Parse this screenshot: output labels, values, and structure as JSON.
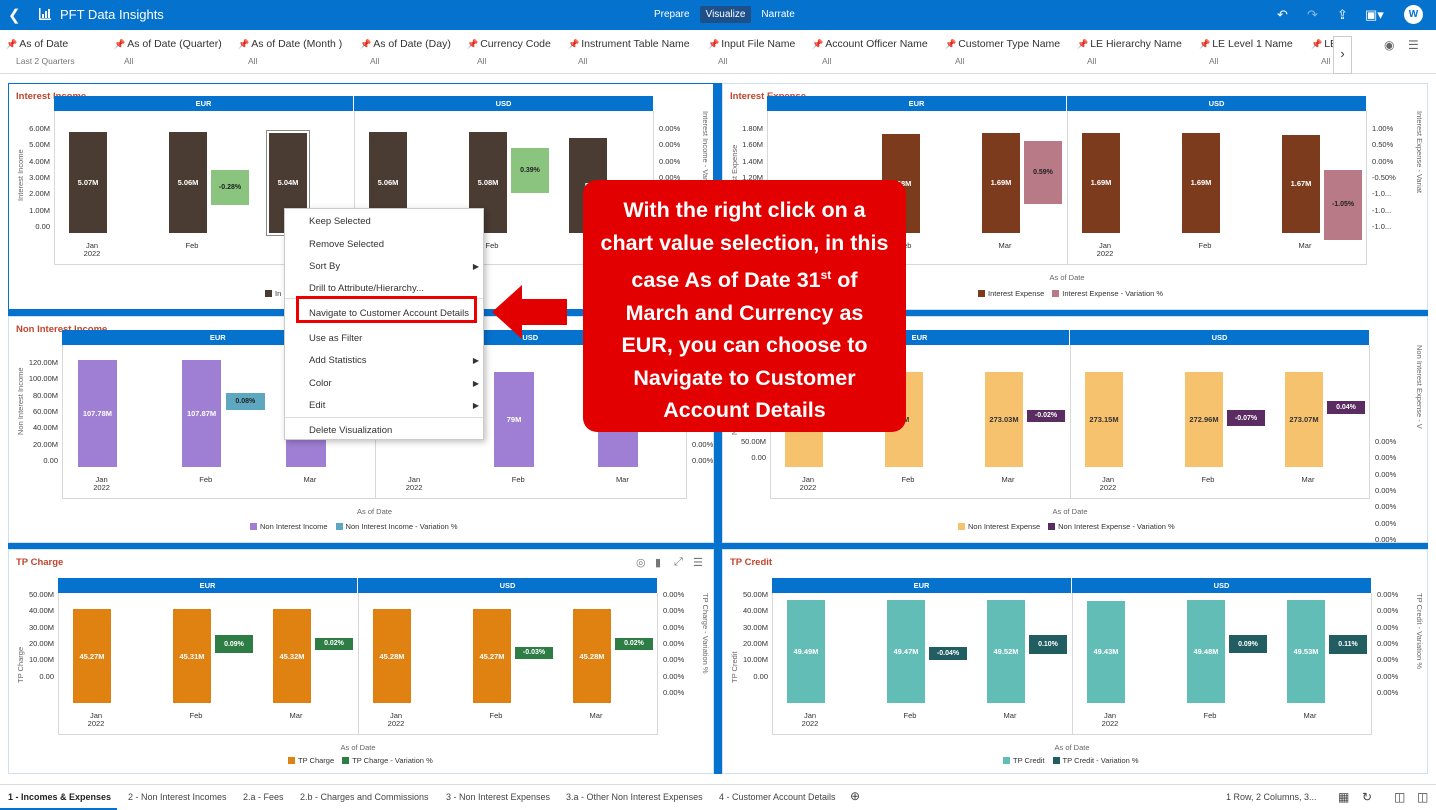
{
  "app": {
    "title": "PFT Data Insights",
    "modes": [
      "Prepare",
      "Visualize",
      "Narrate"
    ],
    "active_mode": "Visualize",
    "user_initial": "W"
  },
  "filters": [
    {
      "label": "As of Date",
      "value": "Last 2 Quarters"
    },
    {
      "label": "As of Date (Quarter)",
      "value": "All"
    },
    {
      "label": "As of Date (Month )",
      "value": "All"
    },
    {
      "label": "As of Date (Day)",
      "value": "All"
    },
    {
      "label": "Currency Code",
      "value": "All"
    },
    {
      "label": "Instrument Table Name",
      "value": "All"
    },
    {
      "label": "Input File Name",
      "value": "All"
    },
    {
      "label": "Account Officer Name",
      "value": "All"
    },
    {
      "label": "Customer Type Name",
      "value": "All"
    },
    {
      "label": "LE Hierarchy Name",
      "value": "All"
    },
    {
      "label": "LE Level 1 Name",
      "value": "All"
    },
    {
      "label": "LE",
      "value": "All"
    }
  ],
  "colors": {
    "brand": "#0572ce",
    "title_red": "#c2452d",
    "callout": "#e30000"
  },
  "common": {
    "x_title": "As of Date",
    "currencies": [
      "EUR",
      "USD"
    ],
    "months": [
      "Jan",
      "Feb",
      "Mar"
    ],
    "year": "2022"
  },
  "panels": {
    "income": {
      "title": "Interest Income",
      "yticks": [
        "6.00M",
        "5.00M",
        "4.00M",
        "3.00M",
        "2.00M",
        "1.00M",
        "0.00"
      ],
      "rticks": [
        "0.00%",
        "0.00%",
        "0.00%",
        "0.00%",
        "0.00%",
        "0.00%",
        "0.00%"
      ],
      "ylabel": "Interest Income",
      "rlabel": "Interest Income - Variatio",
      "legend_prefix": "In"
    },
    "expense": {
      "title": "Interest Expense",
      "yticks": [
        "1.80M",
        "1.60M",
        "1.40M",
        "1.20M",
        "1.00M",
        "0.80M",
        "0.60M"
      ],
      "rticks": [
        "1.00%",
        "0.50%",
        "0.00%",
        "-0.50%",
        "-1.0...",
        "-1.0...",
        "-1.0..."
      ],
      "ylabel": "Interest Expense",
      "rlabel": "Interest Expense - Variat",
      "legend": [
        "Interest Expense",
        "Interest Expense - Variation %"
      ],
      "x_title": "As of Date"
    },
    "nonincome": {
      "title": "Non Interest Income",
      "yticks": [
        "120.00M",
        "100.00M",
        "80.00M",
        "60.00M",
        "40.00M",
        "20.00M",
        "0.00"
      ],
      "rticks": [
        "0.00%",
        "0.00%",
        "0.00%",
        "0.00%",
        "0.00%",
        "0.00%",
        "0.00%"
      ],
      "ylabel": "Non Interest Income",
      "legend": [
        "Non Interest Income",
        "Non Interest Income - Variation %"
      ],
      "x_title": "As of Date"
    },
    "nonexpense": {
      "yticks": [
        "50.00M",
        "0.00"
      ],
      "rticks": [
        "0.00%",
        "0.00%",
        "0.00%",
        "0.00%",
        "0.00%",
        "0.00%",
        "0.00%"
      ],
      "ylabel": "Non Interest Expense",
      "rlabel": "Non Interest Expense - V",
      "legend": [
        "Non Interest Expense",
        "Non Interest Expense - Variation %"
      ],
      "x_title": "As of Date"
    },
    "tpcharge": {
      "title": "TP Charge",
      "yticks": [
        "50.00M",
        "40.00M",
        "30.00M",
        "20.00M",
        "10.00M",
        "0.00"
      ],
      "rticks": [
        "0.00%",
        "0.00%",
        "0.00%",
        "0.00%",
        "0.00%",
        "0.00%",
        "0.00%"
      ],
      "ylabel": "TP Charge",
      "rlabel": "TP Charge - Variation %",
      "legend": [
        "TP Charge",
        "TP Charge - Variation %"
      ],
      "x_title": "As of Date"
    },
    "tpcredit": {
      "title": "TP Credit",
      "yticks": [
        "50.00M",
        "40.00M",
        "30.00M",
        "20.00M",
        "10.00M",
        "0.00"
      ],
      "rticks": [
        "0.00%",
        "0.00%",
        "0.00%",
        "0.00%",
        "0.00%",
        "0.00%",
        "0.00%"
      ],
      "ylabel": "TP Credit",
      "rlabel": "TP Credit - Variation %",
      "legend": [
        "TP Credit",
        "TP Credit - Variation %"
      ],
      "x_title": "As of Date"
    }
  },
  "chart_data": [
    {
      "type": "bar",
      "title": "Interest Income",
      "categories": [
        "EUR Jan 2022",
        "EUR Feb",
        "EUR Mar",
        "USD Jan 2022",
        "USD Feb",
        "USD Mar"
      ],
      "series": [
        {
          "name": "Interest Income",
          "values": [
            5.07,
            5.06,
            5.04,
            5.06,
            5.08,
            null
          ],
          "labels": [
            "5.07M",
            "5.06M",
            "5.04M",
            "5.06M",
            "5.08M",
            "5."
          ]
        },
        {
          "values": [
            null,
            -0.28,
            null,
            null,
            0.39,
            null
          ],
          "labels": [
            "",
            "-0.28%",
            "",
            "",
            "0.39%",
            ""
          ]
        }
      ],
      "ylim": [
        0,
        6
      ]
    },
    {
      "type": "bar",
      "title": "Interest Expense",
      "categories": [
        "EUR Jan 2022",
        "EUR Feb",
        "EUR Mar",
        "USD Jan 2022",
        "USD Feb",
        "USD Mar"
      ],
      "series": [
        {
          "name": "Interest Expense",
          "values": [
            null,
            1.68,
            1.69,
            1.69,
            1.69,
            1.67
          ],
          "labels": [
            "",
            "1.68M",
            "1.69M",
            "1.69M",
            "1.69M",
            "1.67M"
          ]
        },
        {
          "name": "Interest Expense - Variation %",
          "values": [
            null,
            null,
            0.59,
            null,
            null,
            -1.05
          ],
          "labels": [
            "",
            "",
            "0.59%",
            "",
            "",
            "-1.05%"
          ]
        }
      ]
    },
    {
      "type": "bar",
      "title": "Non Interest Income",
      "categories": [
        "EUR Jan 2022",
        "EUR Feb",
        "EUR Mar",
        "USD Jan 2022",
        "USD Feb",
        "USD Mar"
      ],
      "series": [
        {
          "name": "Non Interest Income",
          "values": [
            107.78,
            107.87,
            null,
            null,
            null,
            null
          ],
          "labels": [
            "107.78M",
            "107.87M",
            "10",
            "",
            "79M",
            "107"
          ]
        },
        {
          "name": "Non Interest Income - Variation %",
          "values": [
            null,
            0.08,
            null,
            null,
            null,
            null
          ],
          "labels": [
            "",
            "0.08%",
            "",
            "",
            "",
            ""
          ]
        }
      ],
      "ylim": [
        0,
        120
      ]
    },
    {
      "type": "bar",
      "title": "Non Interest Expense",
      "categories": [
        "EUR Jan 2022",
        "EUR Feb",
        "EUR Mar",
        "USD Jan 2022",
        "USD Feb",
        "USD Mar"
      ],
      "series": [
        {
          "name": "Non Interest Expense",
          "values": [
            null,
            null,
            273.03,
            273.15,
            272.96,
            273.07
          ],
          "labels": [
            "",
            "7M",
            "273.03M",
            "273.15M",
            "272.96M",
            "273.07M"
          ]
        },
        {
          "name": "Non Interest Expense - Variation %",
          "values": [
            null,
            null,
            -0.02,
            null,
            -0.07,
            0.04
          ],
          "labels": [
            "",
            "",
            "-0.02%",
            "",
            "-0.07%",
            "0.04%"
          ]
        }
      ]
    },
    {
      "type": "bar",
      "title": "TP Charge",
      "categories": [
        "EUR Jan 2022",
        "EUR Feb",
        "EUR Mar",
        "USD Jan 2022",
        "USD Feb",
        "USD Mar"
      ],
      "series": [
        {
          "name": "TP Charge",
          "values": [
            45.27,
            45.31,
            45.32,
            45.28,
            45.27,
            45.28
          ],
          "labels": [
            "45.27M",
            "45.31M",
            "45.32M",
            "45.28M",
            "45.27M",
            "45.28M"
          ]
        },
        {
          "name": "TP Charge - Variation %",
          "values": [
            null,
            0.09,
            0.02,
            null,
            -0.03,
            0.02
          ],
          "labels": [
            "",
            "0.09%",
            "0.02%",
            "",
            "-0.03%",
            "0.02%"
          ]
        }
      ],
      "ylim": [
        0,
        50
      ]
    },
    {
      "type": "bar",
      "title": "TP Credit",
      "categories": [
        "EUR Jan 2022",
        "EUR Feb",
        "EUR Mar",
        "USD Jan 2022",
        "USD Feb",
        "USD Mar"
      ],
      "series": [
        {
          "name": "TP Credit",
          "values": [
            49.49,
            49.47,
            49.52,
            49.43,
            49.48,
            49.53
          ],
          "labels": [
            "49.49M",
            "49.47M",
            "49.52M",
            "49.43M",
            "49.48M",
            "49.53M"
          ]
        },
        {
          "name": "TP Credit - Variation %",
          "values": [
            null,
            -0.04,
            0.1,
            null,
            0.09,
            0.11
          ],
          "labels": [
            "",
            "-0.04%",
            "0.10%",
            "",
            "0.09%",
            "0.11%"
          ]
        }
      ],
      "ylim": [
        0,
        50
      ]
    }
  ],
  "context_menu": {
    "items": [
      "Keep Selected",
      "Remove Selected",
      "Sort By",
      "Drill to Attribute/Hierarchy...",
      "Navigate to Customer Account Details",
      "Use as Filter",
      "Add Statistics",
      "Color",
      "Edit",
      "Delete Visualization"
    ]
  },
  "callout": {
    "line1": "With the right click on a chart value selection, in this case As of Date 31",
    "sup": "st",
    "line2": " of March and Currency as EUR, you can choose to Navigate to Customer Account Details"
  },
  "tabs": [
    "1 - Incomes & Expenses",
    "2 - Non Interest Incomes",
    "2.a - Fees",
    "2.b - Charges and Commissions",
    "3 - Non Interest Expenses",
    "3.a - Other Non Interest Expenses",
    "4 - Customer Account Details"
  ],
  "status": "1 Row, 2 Columns, 3..."
}
